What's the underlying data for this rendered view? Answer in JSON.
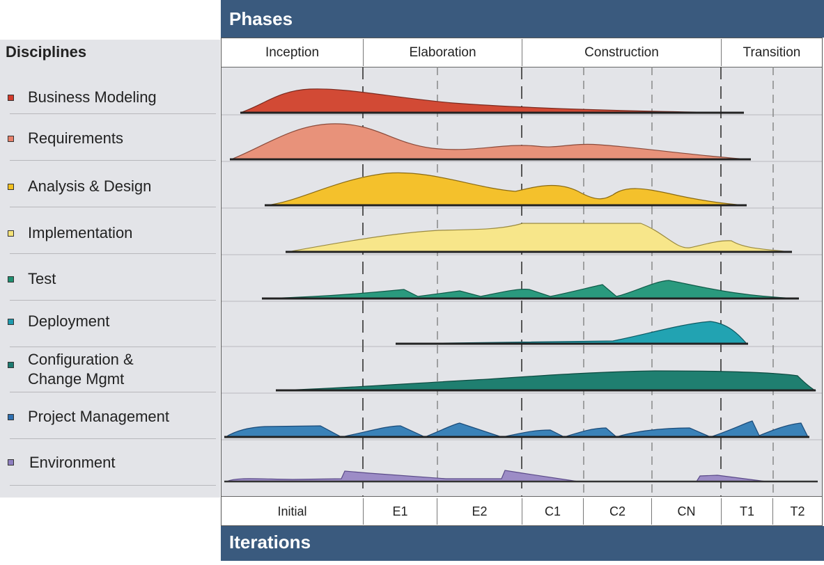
{
  "header": {
    "phases_title": "Phases",
    "iterations_title": "Iterations"
  },
  "disciplines_title": "Disciplines",
  "phases": [
    {
      "label": "Inception"
    },
    {
      "label": "Elaboration"
    },
    {
      "label": "Construction"
    },
    {
      "label": "Transition"
    }
  ],
  "iterations": [
    {
      "label": "Initial"
    },
    {
      "label": "E1"
    },
    {
      "label": "E2"
    },
    {
      "label": "C1"
    },
    {
      "label": "C2"
    },
    {
      "label": "CN"
    },
    {
      "label": "T1"
    },
    {
      "label": "T2"
    }
  ],
  "disciplines": [
    {
      "label": "Business Modeling",
      "color": "#d24a35",
      "icon_color": "#d23a2a"
    },
    {
      "label": "Requirements",
      "color": "#e8927a",
      "icon_color": "#e8806a"
    },
    {
      "label": "Analysis & Design",
      "color": "#f4c12c",
      "icon_color": "#f2c020"
    },
    {
      "label": "Implementation",
      "color": "#f7e68a",
      "icon_color": "#f4e278"
    },
    {
      "label": "Test",
      "color": "#2a9a7e",
      "icon_color": "#1f8f70"
    },
    {
      "label": "Deployment",
      "color": "#22a3b2",
      "icon_color": "#1e9aae"
    },
    {
      "label": "Configuration &\nChange Mgmt",
      "color": "#1f7f70",
      "icon_color": "#1c7a70"
    },
    {
      "label": "Project Management",
      "color": "#3a82b8",
      "icon_color": "#2e6fb0"
    },
    {
      "label": "Environment",
      "color": "#9c8cc6",
      "icon_color": "#8e7fc0"
    }
  ]
}
